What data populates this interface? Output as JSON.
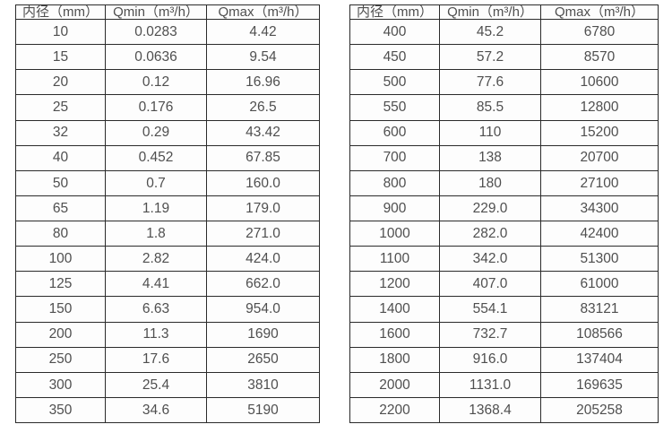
{
  "colors": {
    "border": "#2b2b2b",
    "text": "#4f4f4f",
    "cell_background": "#fdfdfd",
    "page_background": "#ffffff"
  },
  "tables": [
    {
      "name": "small-diameter-flow-table",
      "headers": [
        "内径（mm）",
        "Qmin（m³/h）",
        "Qmax（m³/h）"
      ],
      "rows": [
        [
          "10",
          "0.0283",
          "4.42"
        ],
        [
          "15",
          "0.0636",
          "9.54"
        ],
        [
          "20",
          "0.12",
          "16.96"
        ],
        [
          "25",
          "0.176",
          "26.5"
        ],
        [
          "32",
          "0.29",
          "43.42"
        ],
        [
          "40",
          "0.452",
          "67.85"
        ],
        [
          "50",
          "0.7",
          "160.0"
        ],
        [
          "65",
          "1.19",
          "179.0"
        ],
        [
          "80",
          "1.8",
          "271.0"
        ],
        [
          "100",
          "2.82",
          "424.0"
        ],
        [
          "125",
          "4.41",
          "662.0"
        ],
        [
          "150",
          "6.63",
          "954.0"
        ],
        [
          "200",
          "11.3",
          "1690"
        ],
        [
          "250",
          "17.6",
          "2650"
        ],
        [
          "300",
          "25.4",
          "3810"
        ],
        [
          "350",
          "34.6",
          "5190"
        ]
      ]
    },
    {
      "name": "large-diameter-flow-table",
      "headers": [
        "内径（mm）",
        "Qmin（m³/h）",
        "Qmax（m³/h）"
      ],
      "rows": [
        [
          "400",
          "45.2",
          "6780"
        ],
        [
          "450",
          "57.2",
          "8570"
        ],
        [
          "500",
          "77.6",
          "10600"
        ],
        [
          "550",
          "85.5",
          "12800"
        ],
        [
          "600",
          "110",
          "15200"
        ],
        [
          "700",
          "138",
          "20700"
        ],
        [
          "800",
          "180",
          "27100"
        ],
        [
          "900",
          "229.0",
          "34300"
        ],
        [
          "1000",
          "282.0",
          "42400"
        ],
        [
          "1100",
          "342.0",
          "51300"
        ],
        [
          "1200",
          "407.0",
          "61000"
        ],
        [
          "1400",
          "554.1",
          "83121"
        ],
        [
          "1600",
          "732.7",
          "108566"
        ],
        [
          "1800",
          "916.0",
          "137404"
        ],
        [
          "2000",
          "1131.0",
          "169635"
        ],
        [
          "2200",
          "1368.4",
          "205258"
        ]
      ]
    }
  ]
}
